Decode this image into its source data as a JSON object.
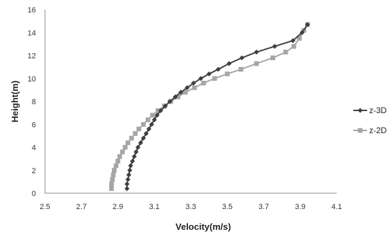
{
  "chart_data": {
    "type": "line",
    "title": "",
    "xlabel": "Velocity(m/s)",
    "ylabel": "Height(m)",
    "xlim": [
      2.5,
      4.1
    ],
    "ylim": [
      0,
      16
    ],
    "xticks": [
      2.5,
      2.7,
      2.9,
      3.1,
      3.3,
      3.5,
      3.7,
      3.9,
      4.1
    ],
    "yticks": [
      0,
      2,
      4,
      6,
      8,
      10,
      12,
      14,
      16
    ],
    "xtick_labels": [
      "2.5",
      "2.7",
      "2.9",
      "3.1",
      "3.3",
      "3.5",
      "3.7",
      "3.9",
      "4.1"
    ],
    "ytick_labels": [
      "0",
      "2",
      "4",
      "6",
      "8",
      "10",
      "12",
      "14",
      "16"
    ],
    "grid": false,
    "legend_position": "right",
    "series": [
      {
        "name": "z-3D",
        "color": "#404040",
        "marker": "diamond",
        "x": [
          2.95,
          2.95,
          2.955,
          2.96,
          2.965,
          2.97,
          2.98,
          2.99,
          3.0,
          3.01,
          3.025,
          3.04,
          3.055,
          3.07,
          3.085,
          3.1,
          3.115,
          3.135,
          3.16,
          3.185,
          3.215,
          3.245,
          3.28,
          3.315,
          3.355,
          3.4,
          3.45,
          3.51,
          3.58,
          3.66,
          3.76,
          3.86,
          3.91,
          3.94
        ],
        "y": [
          0.4,
          0.8,
          1.2,
          1.6,
          2.0,
          2.4,
          2.8,
          3.2,
          3.6,
          4.0,
          4.4,
          4.8,
          5.2,
          5.6,
          6.0,
          6.4,
          6.8,
          7.2,
          7.6,
          8.0,
          8.4,
          8.8,
          9.2,
          9.6,
          10.0,
          10.4,
          10.8,
          11.3,
          11.8,
          12.3,
          12.8,
          13.3,
          14.0,
          14.7
        ]
      },
      {
        "name": "z-2D",
        "color": "#a6a6a6",
        "marker": "square",
        "x": [
          2.865,
          2.865,
          2.87,
          2.875,
          2.88,
          2.89,
          2.9,
          2.91,
          2.925,
          2.94,
          2.955,
          2.975,
          2.995,
          3.015,
          3.04,
          3.065,
          3.09,
          3.12,
          3.155,
          3.19,
          3.23,
          3.27,
          3.32,
          3.37,
          3.43,
          3.5,
          3.575,
          3.66,
          3.75,
          3.82,
          3.865,
          3.895,
          3.92,
          3.94
        ],
        "y": [
          0.4,
          0.8,
          1.2,
          1.6,
          2.0,
          2.4,
          2.8,
          3.2,
          3.6,
          4.0,
          4.4,
          4.8,
          5.2,
          5.6,
          6.0,
          6.4,
          6.8,
          7.2,
          7.6,
          8.0,
          8.4,
          8.8,
          9.2,
          9.6,
          10.0,
          10.4,
          10.8,
          11.3,
          11.8,
          12.3,
          12.8,
          13.5,
          14.2,
          14.7
        ]
      }
    ]
  }
}
